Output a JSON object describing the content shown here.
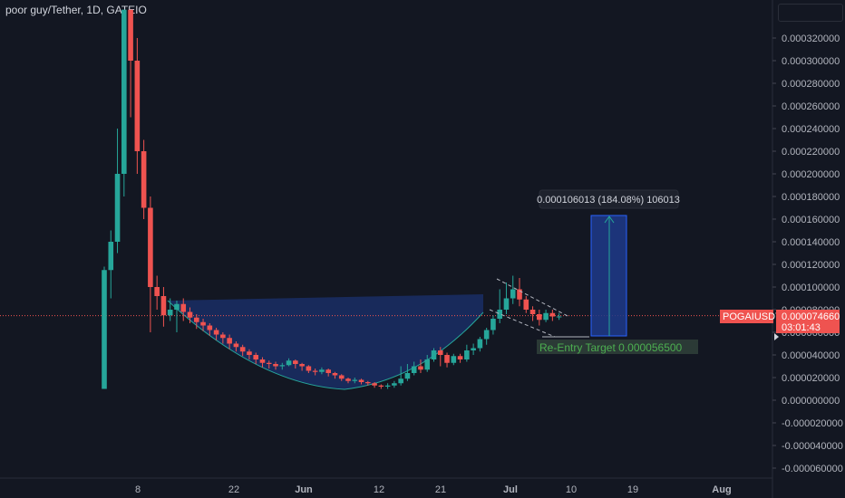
{
  "header": {
    "title": "poor guy/Tether, 1D, GATEIO"
  },
  "price_tag": {
    "symbol": "POGAIUSDT",
    "price": "0.000074660",
    "countdown": "03:01:43"
  },
  "measure_label": "0.000106013 (184.08%) 106013",
  "reentry_label": "Re-Entry Target  0.000056500",
  "colors": {
    "bg": "#131722",
    "up": "#26a69a",
    "down": "#ef5350",
    "grid": "#1e222d",
    "text": "#d1d4dc",
    "box": "#1e3a8a"
  },
  "chart_data": {
    "type": "candlestick",
    "y_ticks": [
      "0.000320000",
      "0.000300000",
      "0.000280000",
      "0.000260000",
      "0.000240000",
      "0.000220000",
      "0.000200000",
      "0.000180000",
      "0.000160000",
      "0.000140000",
      "0.000120000",
      "0.000100000",
      "0.000080000",
      "0.000060000",
      "0.000040000",
      "0.000020000",
      "0.000000000",
      "-0.000020000",
      "-0.000040000",
      "-0.000060000"
    ],
    "x_ticks": [
      "8",
      "22",
      "Jun",
      "12",
      "21",
      "Jul",
      "10",
      "19",
      "Aug"
    ],
    "ylim": [
      -7e-05,
      0.000345
    ],
    "candles": [
      [
        1e-05,
        0.000115,
        1e-05,
        0.000118
      ],
      [
        0.000115,
        0.00014,
        9e-05,
        0.00015
      ],
      [
        0.00014,
        0.0002,
        0.00013,
        0.00024
      ],
      [
        0.0002,
        0.000345,
        0.00018,
        0.000345
      ],
      [
        0.000345,
        0.0003,
        0.00025,
        0.000345
      ],
      [
        0.0003,
        0.00022,
        0.0002,
        0.00032
      ],
      [
        0.00022,
        0.00017,
        0.00016,
        0.00023
      ],
      [
        0.00017,
        0.0001,
        6e-05,
        0.00018
      ],
      [
        0.0001,
        9.2e-05,
        8e-05,
        0.00011
      ],
      [
        9.2e-05,
        7.5e-05,
        6.5e-05,
        0.0001
      ],
      [
        7.5e-05,
        8e-05,
        7e-05,
        9e-05
      ],
      [
        8e-05,
        8.5e-05,
        6e-05,
        8.8e-05
      ],
      [
        8.5e-05,
        7.8e-05,
        7e-05,
        9e-05
      ],
      [
        7.8e-05,
        7.3e-05,
        6.8e-05,
        8.2e-05
      ],
      [
        7.3e-05,
        6.9e-05,
        6.3e-05,
        7.6e-05
      ],
      [
        6.9e-05,
        6.6e-05,
        6.1e-05,
        7.2e-05
      ],
      [
        6.6e-05,
        6.2e-05,
        5.7e-05,
        6.8e-05
      ],
      [
        6.2e-05,
        5.8e-05,
        5.3e-05,
        6.4e-05
      ],
      [
        5.8e-05,
        5.5e-05,
        5e-05,
        6e-05
      ],
      [
        5.5e-05,
        5e-05,
        4.5e-05,
        5.8e-05
      ],
      [
        5e-05,
        4.7e-05,
        4.3e-05,
        5.2e-05
      ],
      [
        4.7e-05,
        4.3e-05,
        3.9e-05,
        4.9e-05
      ],
      [
        4.3e-05,
        4e-05,
        3.6e-05,
        4.5e-05
      ],
      [
        4e-05,
        3.6e-05,
        3.2e-05,
        4.2e-05
      ],
      [
        3.6e-05,
        3.3e-05,
        2.9e-05,
        3.8e-05
      ],
      [
        3.3e-05,
        3.2e-05,
        2.8e-05,
        3.5e-05
      ],
      [
        3.2e-05,
        3e-05,
        2.7e-05,
        3.4e-05
      ],
      [
        3e-05,
        3.1e-05,
        2.7e-05,
        3.3e-05
      ],
      [
        3.1e-05,
        3.5e-05,
        3e-05,
        3.7e-05
      ],
      [
        3.5e-05,
        3.2e-05,
        2.8e-05,
        3.6e-05
      ],
      [
        3.2e-05,
        3e-05,
        2.6e-05,
        3.3e-05
      ],
      [
        3e-05,
        2.6e-05,
        2.4e-05,
        3.1e-05
      ],
      [
        2.6e-05,
        2.5e-05,
        2.2e-05,
        2.8e-05
      ],
      [
        2.5e-05,
        2.7e-05,
        2.3e-05,
        2.9e-05
      ],
      [
        2.7e-05,
        2.4e-05,
        2.1e-05,
        2.8e-05
      ],
      [
        2.4e-05,
        2.2e-05,
        1.9e-05,
        2.5e-05
      ],
      [
        2.2e-05,
        1.9e-05,
        1.7e-05,
        2.3e-05
      ],
      [
        1.9e-05,
        1.7e-05,
        1.5e-05,
        2e-05
      ],
      [
        1.7e-05,
        1.8e-05,
        1.5e-05,
        2e-05
      ],
      [
        1.8e-05,
        1.6e-05,
        1.4e-05,
        1.9e-05
      ],
      [
        1.6e-05,
        1.5e-05,
        1.3e-05,
        1.7e-05
      ],
      [
        1.5e-05,
        1.3e-05,
        1.1e-05,
        1.6e-05
      ],
      [
        1.3e-05,
        1.2e-05,
        1e-05,
        1.4e-05
      ],
      [
        1.2e-05,
        1.3e-05,
        1e-05,
        1.5e-05
      ],
      [
        1.3e-05,
        1.5e-05,
        1.1e-05,
        1.7e-05
      ],
      [
        1.5e-05,
        1.9e-05,
        1.3e-05,
        3e-05
      ],
      [
        1.9e-05,
        2.4e-05,
        1.7e-05,
        3.2e-05
      ],
      [
        2.4e-05,
        3e-05,
        2.2e-05,
        3.4e-05
      ],
      [
        3e-05,
        2.7e-05,
        2.4e-05,
        3.6e-05
      ],
      [
        2.7e-05,
        3.6e-05,
        2.5e-05,
        4e-05
      ],
      [
        3.6e-05,
        4.4e-05,
        3.4e-05,
        4.6e-05
      ],
      [
        4.4e-05,
        4e-05,
        3e-05,
        4.7e-05
      ],
      [
        4e-05,
        3.3e-05,
        2.9e-05,
        4.2e-05
      ],
      [
        3.3e-05,
        3.9e-05,
        3.1e-05,
        4.1e-05
      ],
      [
        3.9e-05,
        3.6e-05,
        3.3e-05,
        4.1e-05
      ],
      [
        3.6e-05,
        4.4e-05,
        3.4e-05,
        4.9e-05
      ],
      [
        4.4e-05,
        4.6e-05,
        4e-05,
        5e-05
      ],
      [
        4.6e-05,
        5.4e-05,
        4.3e-05,
        5.6e-05
      ],
      [
        5.4e-05,
        6.2e-05,
        4.9e-05,
        6.4e-05
      ],
      [
        6.2e-05,
        7.2e-05,
        5.8e-05,
        7.5e-05
      ],
      [
        7.2e-05,
        8e-05,
        6.8e-05,
        9.8e-05
      ],
      [
        8e-05,
        9e-05,
        7.6e-05,
        0.000104
      ],
      [
        9e-05,
        9.8e-05,
        8.5e-05,
        0.00011
      ],
      [
        9.8e-05,
        8.9e-05,
        8.3e-05,
        0.000108
      ],
      [
        8.9e-05,
        8e-05,
        7.7e-05,
        9.2e-05
      ],
      [
        8e-05,
        7.6e-05,
        7e-05,
        8.3e-05
      ],
      [
        7.6e-05,
        7.1e-05,
        6.6e-05,
        8e-05
      ],
      [
        7.1e-05,
        7.7e-05,
        6.9e-05,
        8e-05
      ],
      [
        7.7e-05,
        7.4e-05,
        7e-05,
        8e-05
      ],
      [
        7.4e-05,
        7.4e-05,
        7.1e-05,
        7.7e-05
      ]
    ]
  }
}
